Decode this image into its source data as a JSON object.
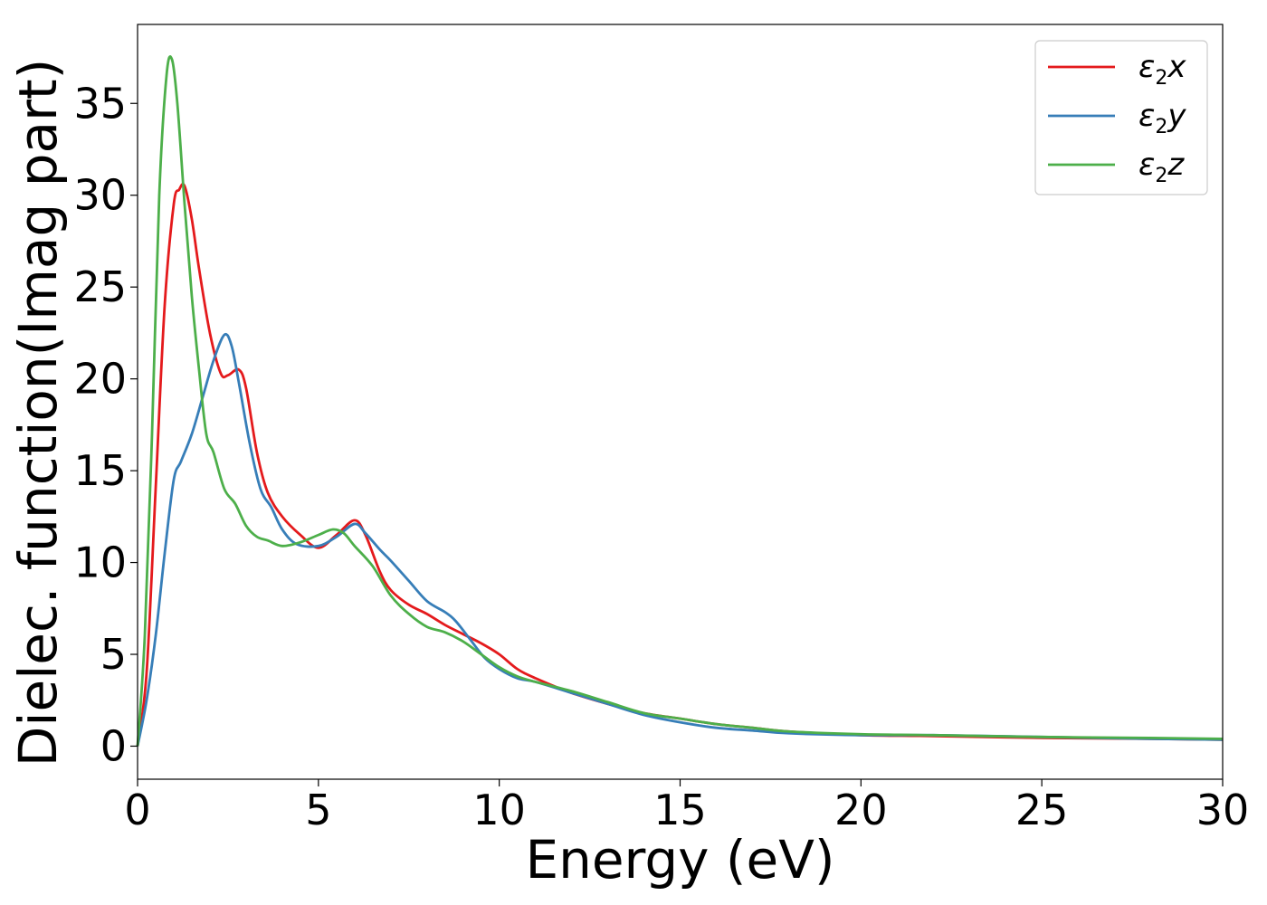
{
  "chart_data": {
    "type": "line",
    "title": "",
    "xlabel": "Energy (eV)",
    "ylabel": "Dielec. function(Imag part)",
    "xlim": [
      0,
      30
    ],
    "ylim": [
      -1.8,
      39.3
    ],
    "xticks": [
      0,
      5,
      10,
      15,
      20,
      25,
      30
    ],
    "yticks": [
      0,
      5,
      10,
      15,
      20,
      25,
      30,
      35
    ],
    "grid": false,
    "legend_position": "top-right",
    "series": [
      {
        "name": "ε2x",
        "legend": {
          "symbol": "ε",
          "sub": "2",
          "axis": "x"
        },
        "color": "#e41a1c",
        "x": [
          0,
          0.25,
          0.5,
          0.75,
          1.0,
          1.15,
          1.3,
          1.5,
          1.7,
          2.0,
          2.3,
          2.5,
          2.8,
          3.0,
          3.3,
          3.6,
          4.0,
          4.5,
          5.0,
          5.5,
          6.0,
          6.3,
          6.7,
          7.0,
          7.5,
          8.0,
          8.5,
          9.0,
          9.5,
          10.0,
          10.5,
          11.0,
          12.0,
          13.0,
          14.0,
          15.0,
          16.0,
          17.0,
          18.0,
          20.0,
          22.0,
          25.0,
          28.0,
          30.0
        ],
        "y": [
          0,
          4,
          14,
          24,
          29.5,
          30.3,
          30.5,
          28.7,
          26.0,
          22.5,
          20.3,
          20.2,
          20.5,
          19.5,
          16.0,
          13.8,
          12.5,
          11.5,
          10.8,
          11.5,
          12.3,
          11.5,
          9.5,
          8.5,
          7.7,
          7.2,
          6.6,
          6.1,
          5.6,
          5.0,
          4.2,
          3.7,
          2.9,
          2.3,
          1.8,
          1.5,
          1.2,
          1.0,
          0.8,
          0.6,
          0.55,
          0.45,
          0.4,
          0.35
        ]
      },
      {
        "name": "ε2y",
        "legend": {
          "symbol": "ε",
          "sub": "2",
          "axis": "y"
        },
        "color": "#377eb8",
        "x": [
          0,
          0.25,
          0.5,
          0.75,
          1.0,
          1.2,
          1.5,
          1.8,
          2.1,
          2.4,
          2.6,
          2.8,
          3.1,
          3.4,
          3.7,
          4.0,
          4.4,
          5.0,
          5.5,
          6.0,
          6.3,
          6.7,
          7.0,
          7.5,
          8.0,
          8.5,
          8.8,
          9.2,
          9.6,
          10.0,
          10.5,
          11.0,
          12.0,
          13.0,
          14.0,
          15.0,
          16.0,
          17.0,
          18.0,
          20.0,
          22.0,
          25.0,
          28.0,
          30.0
        ],
        "y": [
          0,
          2.5,
          6,
          10.5,
          14.5,
          15.5,
          17.0,
          19.0,
          21.0,
          22.4,
          21.8,
          19.8,
          16.5,
          14.0,
          13.0,
          11.8,
          11.0,
          10.9,
          11.4,
          12.1,
          11.6,
          10.7,
          10.1,
          9.0,
          7.9,
          7.3,
          6.8,
          5.8,
          4.8,
          4.2,
          3.7,
          3.5,
          2.9,
          2.3,
          1.7,
          1.3,
          1.0,
          0.85,
          0.7,
          0.6,
          0.6,
          0.5,
          0.4,
          0.35
        ]
      },
      {
        "name": "ε2z",
        "legend": {
          "symbol": "ε",
          "sub": "2",
          "axis": "z"
        },
        "color": "#4daf4a",
        "x": [
          0,
          0.2,
          0.4,
          0.6,
          0.8,
          0.95,
          1.1,
          1.3,
          1.5,
          1.7,
          1.9,
          2.1,
          2.4,
          2.7,
          3.0,
          3.3,
          3.6,
          4.0,
          4.5,
          5.0,
          5.4,
          5.7,
          6.0,
          6.5,
          7.0,
          7.5,
          8.0,
          8.5,
          9.0,
          9.5,
          10.0,
          10.5,
          11.0,
          12.0,
          13.0,
          14.0,
          15.0,
          16.0,
          17.0,
          18.0,
          20.0,
          22.0,
          25.0,
          28.0,
          30.0
        ],
        "y": [
          0,
          6,
          17,
          30,
          36.5,
          37.4,
          35.0,
          29.5,
          24.5,
          20.5,
          17.0,
          16.0,
          14.0,
          13.2,
          12.0,
          11.4,
          11.2,
          10.9,
          11.1,
          11.5,
          11.8,
          11.6,
          10.9,
          9.8,
          8.2,
          7.2,
          6.5,
          6.2,
          5.7,
          5.0,
          4.3,
          3.8,
          3.5,
          3.0,
          2.4,
          1.8,
          1.5,
          1.2,
          1.0,
          0.8,
          0.65,
          0.6,
          0.5,
          0.45,
          0.4
        ]
      }
    ]
  }
}
